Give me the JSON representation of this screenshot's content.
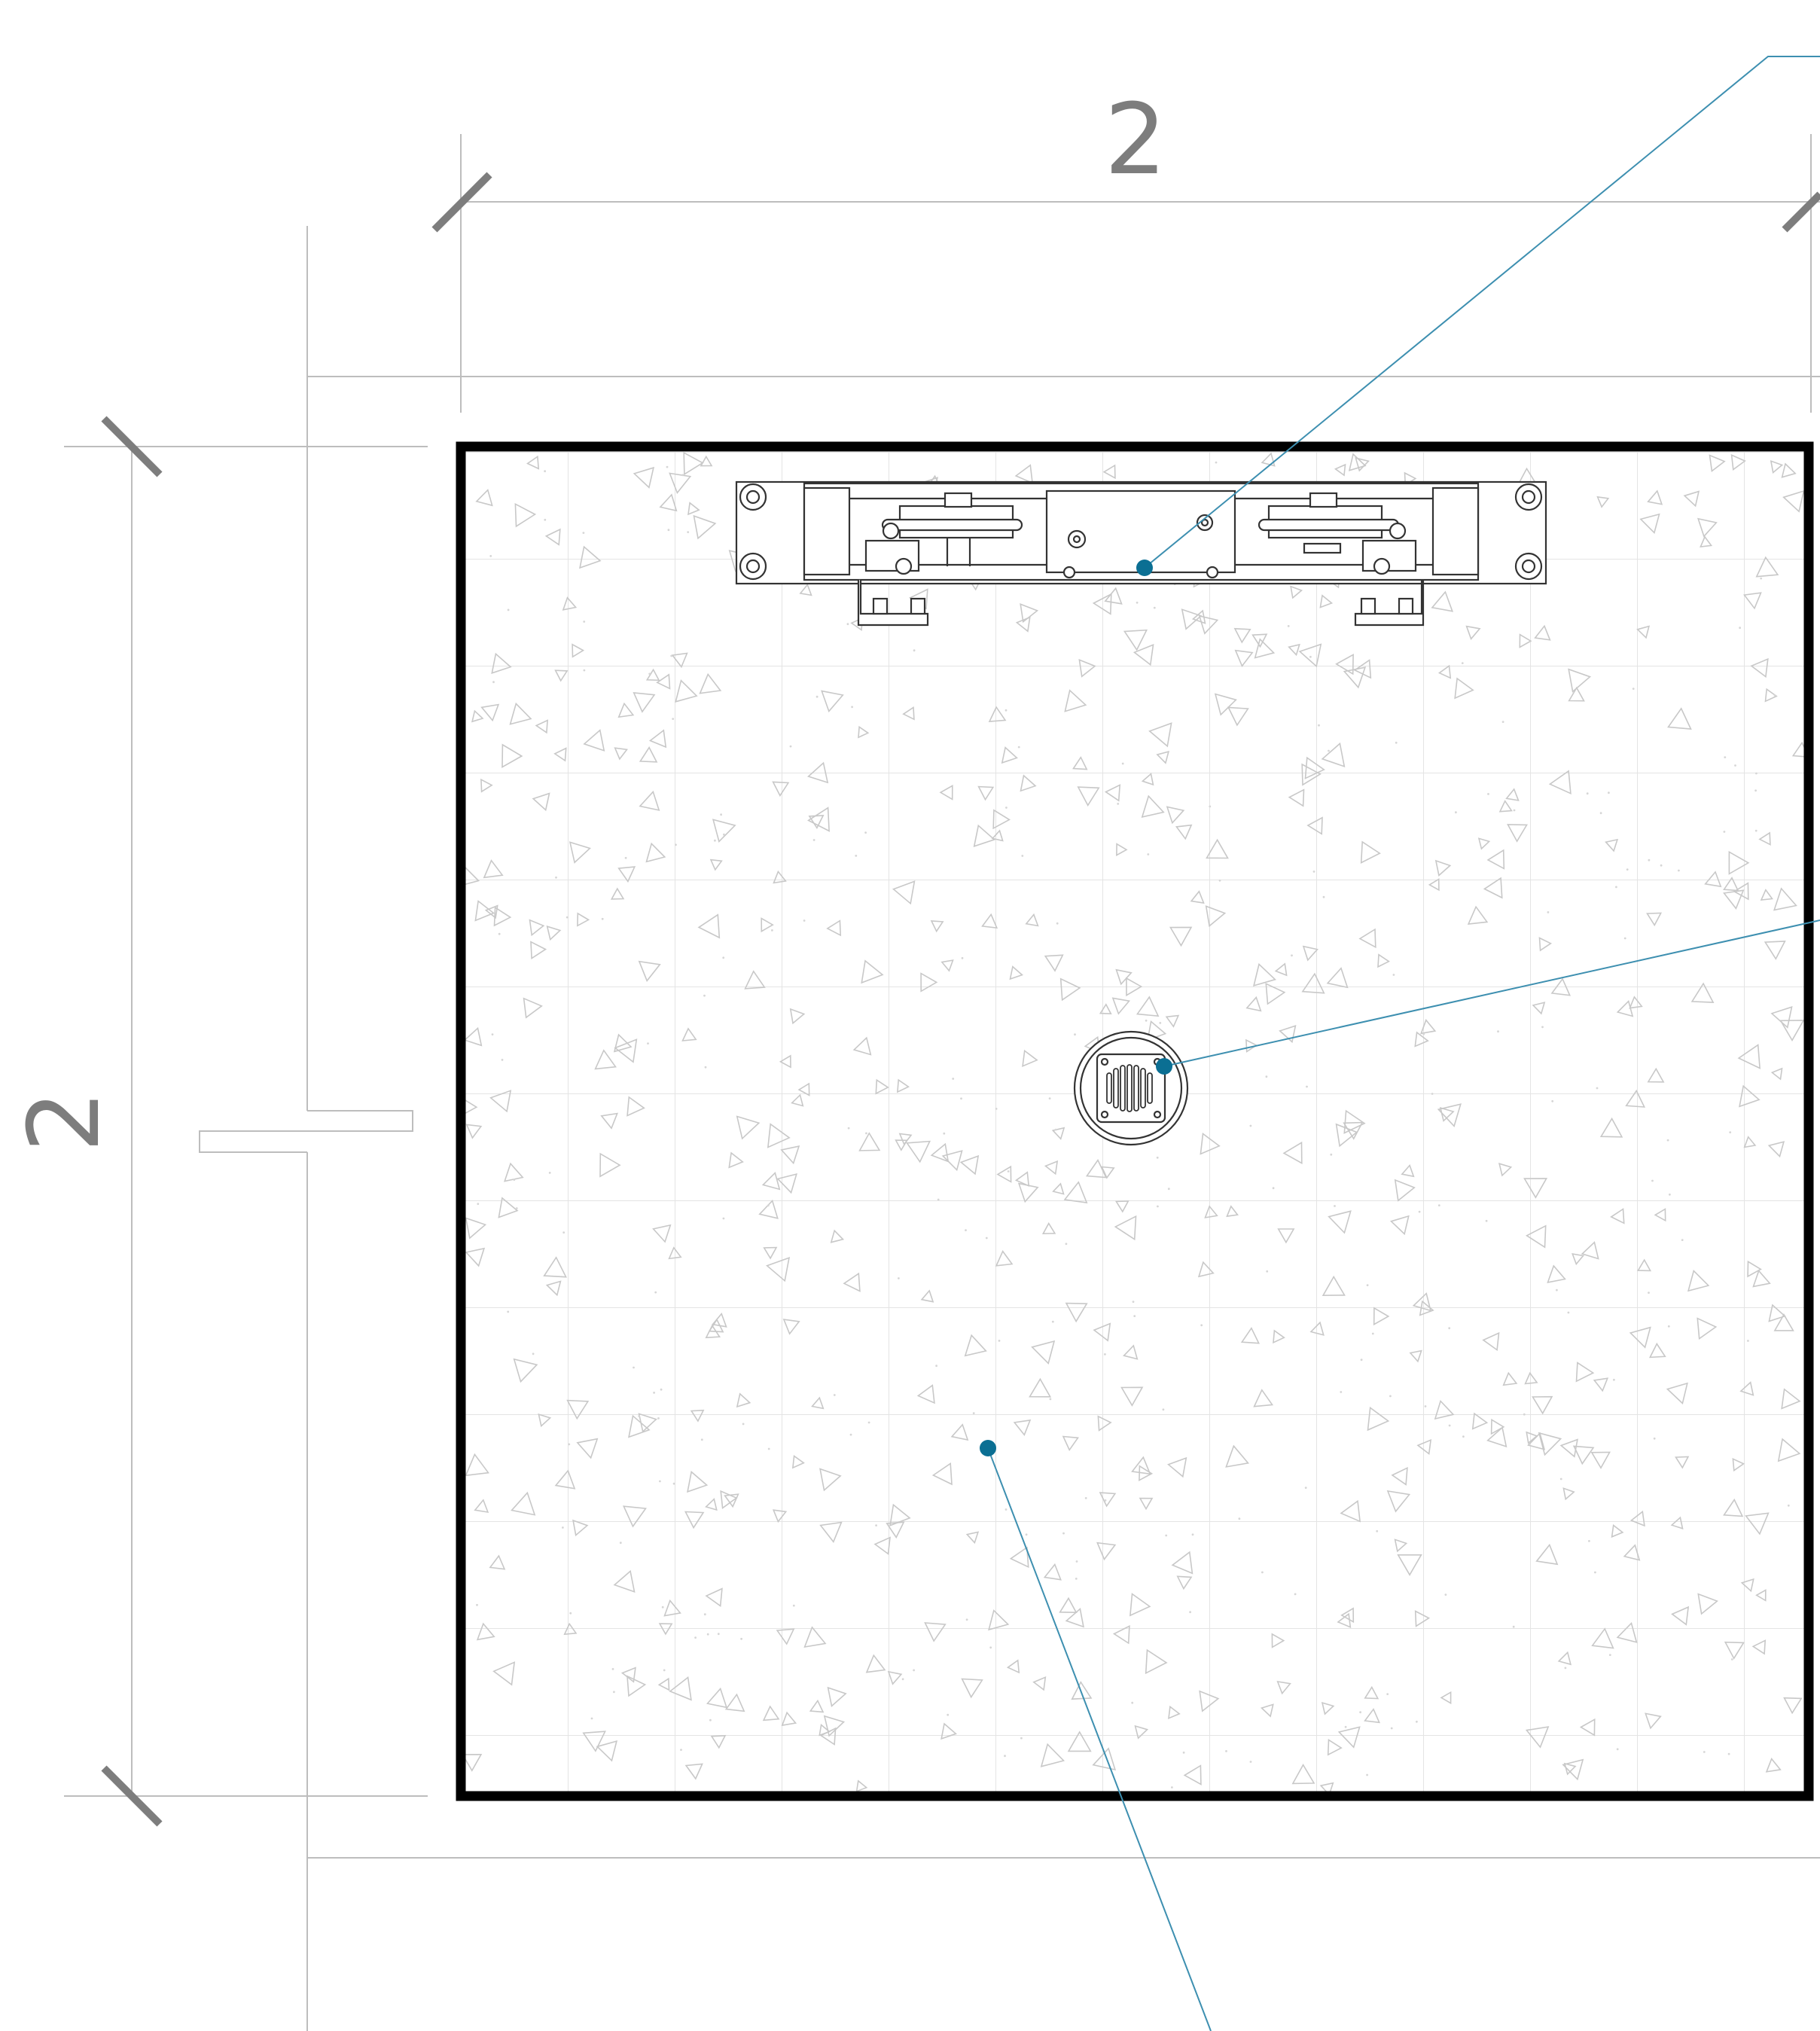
{
  "dimensions": {
    "width_label": "2",
    "height_label": "2"
  },
  "colors": {
    "callout": "#3d8fb0",
    "marker": "#0b6f93",
    "frame": "#000000",
    "dimension": "#7d7d7d",
    "grid": "#e6e6e6",
    "hatch": "#c8c8c8"
  },
  "markers": [
    {
      "name": "linear-drain-channel-marker"
    },
    {
      "name": "point-drain-marker"
    },
    {
      "name": "floor-surface-marker"
    }
  ]
}
